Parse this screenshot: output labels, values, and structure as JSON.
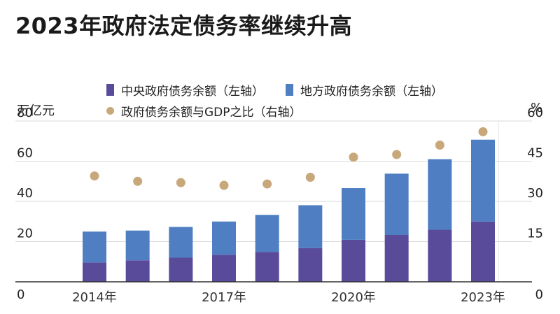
{
  "chart_data": {
    "type": "bar",
    "title": "2023年政府法定债务率继续升高",
    "categories": [
      "2014",
      "2015",
      "2016",
      "2017",
      "2018",
      "2019",
      "2020",
      "2021",
      "2022",
      "2023"
    ],
    "x_tick_labels": [
      {
        "category": "2014",
        "label": "2014年"
      },
      {
        "category": "2017",
        "label": "2017年"
      },
      {
        "category": "2020",
        "label": "2020年"
      },
      {
        "category": "2023",
        "label": "2023年"
      }
    ],
    "stacked": true,
    "series": [
      {
        "name": "中央政府债务余额（左轴）",
        "axis": "left",
        "color": "#5a4a9a",
        "values": [
          9.6,
          10.7,
          12.0,
          13.5,
          14.9,
          16.8,
          20.9,
          23.3,
          25.9,
          30.0
        ]
      },
      {
        "name": "地方政府债务余额（左轴）",
        "axis": "left",
        "color": "#4f7fc2",
        "values": [
          15.4,
          14.8,
          15.3,
          16.5,
          18.4,
          21.3,
          25.7,
          30.5,
          35.1,
          40.7
        ]
      },
      {
        "name": "政府债务余额与GDP之比（右轴）",
        "axis": "right",
        "type": "scatter",
        "color": "#c8a87a",
        "values": [
          39.5,
          37.5,
          37.0,
          36.0,
          36.5,
          39.0,
          46.5,
          47.5,
          51.0,
          56.0
        ]
      }
    ],
    "left_axis": {
      "unit": "万亿元",
      "ylim": [
        0,
        80
      ],
      "ticks": [
        0,
        20,
        40,
        60,
        80
      ]
    },
    "right_axis": {
      "unit": "%",
      "ylim": [
        0,
        60
      ],
      "ticks": [
        0,
        15,
        30,
        45,
        60
      ]
    },
    "grid": true,
    "legend_position": "top"
  }
}
